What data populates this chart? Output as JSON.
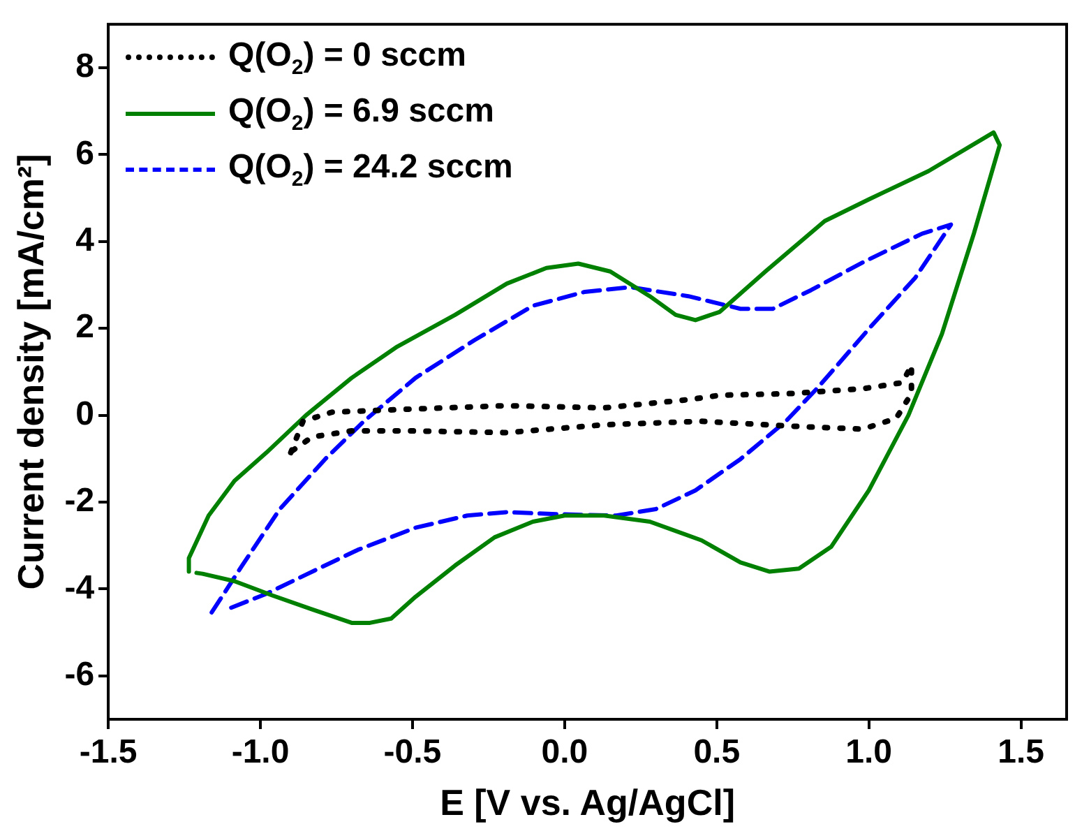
{
  "chart_data": {
    "type": "line",
    "xlabel": "E [V vs. Ag/AgCl]",
    "ylabel": "Current density [mA/cm²]",
    "xlim": [
      -1.5,
      1.65
    ],
    "xticks": [
      -1.5,
      {
        "value": -1,
        "label": "-1.0"
      },
      -0.5,
      {
        "value": 0,
        "label": "0.0"
      },
      0.5,
      {
        "value": 1,
        "label": "1.0"
      },
      1.5
    ],
    "ylim": [
      -7,
      9
    ],
    "yticks": [
      -6,
      -4,
      -2,
      0,
      2,
      4,
      6,
      8
    ],
    "legend": "top left",
    "marker": "none",
    "series": [
      {
        "name": "Q(O$_{2}$) = 0 sccm",
        "color": "#000000",
        "line_style": "dotted",
        "x": [
          -0.9,
          -0.86,
          -0.765,
          -0.51,
          -0.19,
          0.13,
          0.41,
          0.51,
          0.75,
          0.98,
          1.11,
          1.14,
          1.14,
          1.09,
          0.98,
          0.77,
          0.45,
          0.13,
          -0.19,
          -0.51,
          -0.7,
          -0.83,
          -0.9
        ],
        "values": [
          -0.86,
          -0.14,
          0.07,
          0.14,
          0.22,
          0.17,
          0.36,
          0.46,
          0.5,
          0.61,
          0.75,
          1.15,
          0.5,
          -0.07,
          -0.32,
          -0.26,
          -0.14,
          -0.22,
          -0.4,
          -0.36,
          -0.36,
          -0.5,
          -0.84
        ]
      },
      {
        "name": "Q(O$_{2}$) = 6.9 sccm",
        "color": "#008000",
        "line_style": "solid",
        "x": [
          -1.235,
          -1.235,
          -1.17,
          -1.085,
          -0.98,
          -0.85,
          -0.7,
          -0.55,
          -0.36,
          -0.19,
          -0.06,
          0.045,
          0.15,
          0.28,
          0.365,
          0.43,
          0.51,
          0.66,
          0.855,
          1.0,
          1.196,
          1.41,
          1.43,
          1.345,
          1.24,
          1.13,
          1.0,
          0.876,
          0.77,
          0.674,
          0.578,
          0.45,
          0.28,
          0.13,
          0.0,
          -0.104,
          -0.23,
          -0.36,
          -0.49,
          -0.57,
          -0.64,
          -0.7,
          -0.83,
          -0.96,
          -1.085,
          -1.19,
          -1.21
        ],
        "values": [
          -3.6,
          -3.29,
          -2.31,
          -1.51,
          -0.86,
          0.0,
          0.86,
          1.58,
          2.31,
          3.03,
          3.39,
          3.49,
          3.31,
          2.74,
          2.31,
          2.19,
          2.38,
          3.31,
          4.47,
          4.97,
          5.62,
          6.51,
          6.22,
          4.18,
          1.87,
          0.0,
          -1.73,
          -3.03,
          -3.53,
          -3.6,
          -3.39,
          -2.88,
          -2.45,
          -2.31,
          -2.31,
          -2.45,
          -2.81,
          -3.46,
          -4.18,
          -4.68,
          -4.78,
          -4.78,
          -4.47,
          -4.15,
          -3.82,
          -3.65,
          -3.63
        ]
      },
      {
        "name": "Q(O$_{2}$) = 24.2 sccm",
        "color": "#0000ff",
        "line_style": "dashed",
        "x": [
          -1.16,
          -1.06,
          -0.936,
          -0.787,
          -0.66,
          -0.49,
          -0.296,
          -0.104,
          0.066,
          0.215,
          0.407,
          0.578,
          0.684,
          0.81,
          0.983,
          1.175,
          1.27,
          1.153,
          1.004,
          0.834,
          0.727,
          0.578,
          0.43,
          0.3,
          0.17,
          -0.02,
          -0.19,
          -0.32,
          -0.49,
          -0.68,
          -0.85,
          -0.98,
          -1.11
        ],
        "values": [
          -4.54,
          -3.46,
          -2.16,
          -1.01,
          -0.14,
          0.86,
          1.73,
          2.52,
          2.84,
          2.95,
          2.74,
          2.45,
          2.45,
          2.88,
          3.53,
          4.18,
          4.39,
          3.17,
          2.02,
          0.65,
          -0.14,
          -1.01,
          -1.73,
          -2.16,
          -2.31,
          -2.28,
          -2.23,
          -2.31,
          -2.59,
          -3.1,
          -3.67,
          -4.11,
          -4.47
        ]
      }
    ]
  }
}
